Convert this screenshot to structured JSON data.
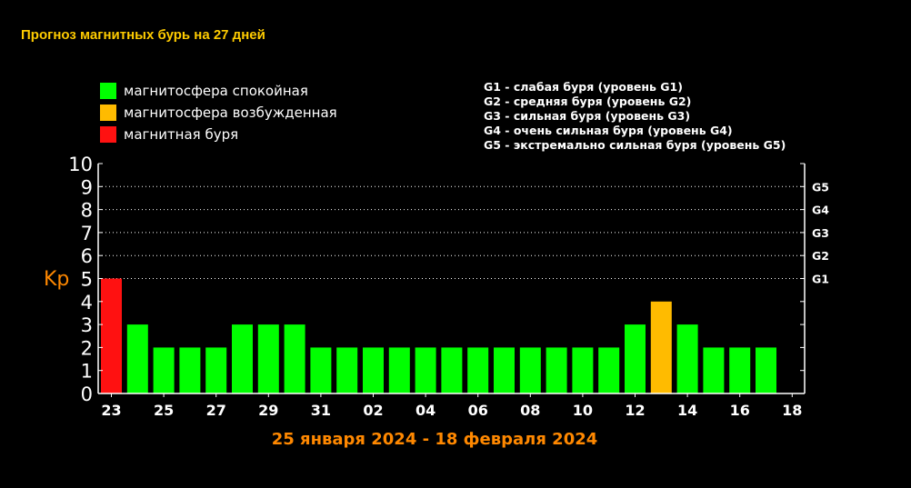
{
  "page": {
    "title": "Прогноз магнитных бурь на 27 дней"
  },
  "legend": {
    "status": [
      {
        "label": "магнитосфера спокойная",
        "color": "#00ff00"
      },
      {
        "label": "магнитосфера возбужденная",
        "color": "#ffbb00"
      },
      {
        "label": "магнитная буря",
        "color": "#ff1111"
      }
    ],
    "g_levels": [
      "G1 - слабая буря (уровень G1)",
      "G2 - средняя буря (уровень G2)",
      "G3 - сильная буря (уровень G3)",
      "G4 - очень сильная буря (уровень G4)",
      "G5 - экстремально сильная буря (уровень G5)"
    ]
  },
  "chart_data": {
    "type": "bar",
    "title": "Прогноз магнитных бурь на 27 дней",
    "xlabel": "25 января 2024 - 18 февраля 2024",
    "ylabel": "Kp",
    "ylim": [
      0,
      10
    ],
    "yticks": [
      0,
      1,
      2,
      3,
      4,
      5,
      6,
      7,
      8,
      9,
      10
    ],
    "xtick_labels": [
      "23",
      "25",
      "27",
      "29",
      "31",
      "02",
      "04",
      "06",
      "08",
      "10",
      "12",
      "14",
      "16",
      "18"
    ],
    "right_axis_labels": [
      {
        "value": 5,
        "label": "G1"
      },
      {
        "value": 6,
        "label": "G2"
      },
      {
        "value": 7,
        "label": "G3"
      },
      {
        "value": 8,
        "label": "G4"
      },
      {
        "value": 9,
        "label": "G5"
      }
    ],
    "grid": "dotted horizontal at Kp 5-9",
    "values": [
      5,
      3,
      2,
      2,
      2,
      3,
      3,
      3,
      2,
      2,
      2,
      2,
      2,
      2,
      2,
      2,
      2,
      2,
      2,
      2,
      3,
      4,
      3,
      2,
      2,
      2
    ],
    "colors": {
      "quiet": "#00ff00",
      "excited": "#ffbb00",
      "storm": "#ff1111",
      "axis": "#ffffff",
      "grid": "#ffffff",
      "ylabel": "#ff8800",
      "xlabel": "#ff8800",
      "title": "#ffcc00"
    }
  }
}
